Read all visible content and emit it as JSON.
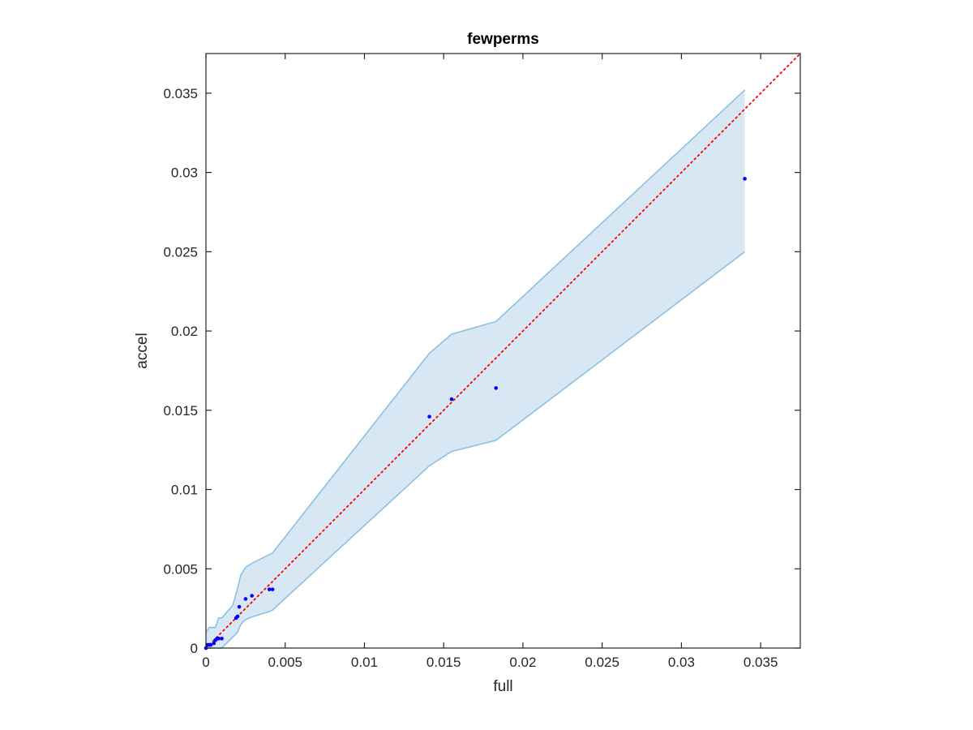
{
  "chart_data": {
    "type": "scatter",
    "title": "fewperms",
    "xlabel": "full",
    "ylabel": "accel",
    "xlim": [
      0,
      0.0375
    ],
    "ylim": [
      0,
      0.0375
    ],
    "xticks": [
      0,
      0.005,
      0.01,
      0.015,
      0.02,
      0.025,
      0.03,
      0.035
    ],
    "xtick_labels": [
      "0",
      "0.005",
      "0.01",
      "0.015",
      "0.02",
      "0.025",
      "0.03",
      "0.035"
    ],
    "yticks": [
      0,
      0.005,
      0.01,
      0.015,
      0.02,
      0.025,
      0.03,
      0.035
    ],
    "ytick_labels": [
      "0",
      "0.005",
      "0.01",
      "0.015",
      "0.02",
      "0.025",
      "0.03",
      "0.035"
    ],
    "grid": false,
    "reference_line": {
      "x": [
        0,
        0.0375
      ],
      "y": [
        0,
        0.0375
      ],
      "style": "dotted"
    },
    "points": {
      "x": [
        0.0,
        0.0001,
        0.0002,
        0.0003,
        0.0005,
        0.0006,
        0.0007,
        0.0008,
        0.001,
        0.0019,
        0.002,
        0.0021,
        0.0025,
        0.0029,
        0.004,
        0.0042,
        0.0141,
        0.0155,
        0.0183,
        0.034
      ],
      "y": [
        0.0,
        0.0002,
        0.0002,
        0.0002,
        0.0003,
        0.0005,
        0.0006,
        0.0006,
        0.0006,
        0.0019,
        0.002,
        0.0026,
        0.0031,
        0.0033,
        0.0037,
        0.0037,
        0.0146,
        0.0157,
        0.0164,
        0.0296
      ]
    },
    "band": {
      "x": [
        0.0,
        0.0002,
        0.0006,
        0.0008,
        0.001,
        0.0017,
        0.002,
        0.0022,
        0.0025,
        0.003,
        0.004,
        0.0042,
        0.0141,
        0.0155,
        0.0183,
        0.034
      ],
      "upper": [
        0.001,
        0.0013,
        0.0013,
        0.0019,
        0.0019,
        0.0027,
        0.0038,
        0.0046,
        0.0051,
        0.0054,
        0.0059,
        0.006,
        0.0186,
        0.0198,
        0.0206,
        0.0352
      ],
      "lower": [
        0.0,
        0.0,
        0.0,
        0.0,
        0.0,
        0.0007,
        0.001,
        0.0015,
        0.0018,
        0.002,
        0.0023,
        0.0024,
        0.0115,
        0.0124,
        0.0131,
        0.025
      ]
    },
    "colors": {
      "points": "#0000ff",
      "reference_line": "#ff0000",
      "band_fill": "#d7e7f3",
      "band_edge": "#8cc0e0",
      "axes": "#262626"
    }
  }
}
